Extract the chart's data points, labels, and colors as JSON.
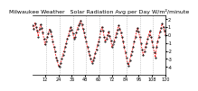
{
  "title": "Milwaukee Weather   Solar Radiation Avg per Day W/m²/minute",
  "x_values": [
    1,
    2,
    3,
    4,
    5,
    6,
    7,
    8,
    9,
    10,
    11,
    12,
    13,
    14,
    15,
    16,
    17,
    18,
    19,
    20,
    21,
    22,
    23,
    24,
    25,
    26,
    27,
    28,
    29,
    30,
    31,
    32,
    33,
    34,
    35,
    36,
    37,
    38,
    39,
    40,
    41,
    42,
    43,
    44,
    45,
    46,
    47,
    48,
    49,
    50,
    51,
    52,
    53,
    54,
    55,
    56,
    57,
    58,
    59,
    60,
    61,
    62,
    63,
    64,
    65,
    66,
    67,
    68,
    69,
    70,
    71,
    72,
    73,
    74,
    75,
    76,
    77,
    78,
    79,
    80,
    81,
    82,
    83,
    84,
    85,
    86,
    87,
    88,
    89,
    90,
    91,
    92,
    93,
    94,
    95,
    96,
    97,
    98,
    99,
    100,
    101,
    102,
    103,
    104,
    105,
    106,
    107,
    108,
    109,
    110,
    111,
    112,
    113,
    114,
    115,
    116,
    117,
    118,
    119,
    120
  ],
  "y_values": [
    1.2,
    0.8,
    1.5,
    1.0,
    0.5,
    -0.2,
    0.8,
    1.3,
    0.9,
    0.3,
    -0.5,
    -1.2,
    -0.8,
    -0.3,
    0.2,
    0.7,
    0.4,
    -0.1,
    -0.8,
    -1.5,
    -2.0,
    -2.8,
    -3.2,
    -3.8,
    -4.0,
    -3.5,
    -3.0,
    -2.5,
    -2.0,
    -1.5,
    -1.0,
    -0.5,
    0.0,
    0.5,
    1.0,
    0.7,
    0.2,
    -0.5,
    -0.2,
    0.3,
    0.8,
    1.2,
    1.5,
    1.8,
    1.3,
    0.8,
    0.3,
    -0.3,
    -0.8,
    -1.5,
    -2.0,
    -2.5,
    -3.0,
    -3.5,
    -3.2,
    -2.8,
    -2.3,
    -1.8,
    -1.3,
    -0.8,
    -0.3,
    0.5,
    1.0,
    0.5,
    -0.2,
    -0.8,
    -0.5,
    0.0,
    0.4,
    -0.1,
    -0.7,
    -1.5,
    -1.2,
    -0.8,
    -0.3,
    0.2,
    0.7,
    1.2,
    0.8,
    0.3,
    -0.2,
    -0.8,
    -1.5,
    -2.2,
    -2.8,
    -3.5,
    -3.8,
    -3.2,
    -2.5,
    -2.0,
    -1.5,
    -0.8,
    -0.3,
    0.5,
    0.9,
    0.4,
    -0.3,
    -1.0,
    -1.8,
    -2.5,
    -2.0,
    -1.5,
    -1.0,
    -0.5,
    0.0,
    0.5,
    -0.2,
    -0.8,
    -1.5,
    -2.2,
    -2.8,
    -1.5,
    -0.8,
    -0.2,
    0.4,
    0.9,
    1.4,
    1.0,
    0.5,
    0.0
  ],
  "line_color": "#ff0000",
  "dot_color": "#000000",
  "background_color": "#ffffff",
  "grid_color": "#aaaaaa",
  "ylim": [
    -5,
    2.5
  ],
  "yticks": [
    -4,
    -3,
    -2,
    -1,
    0,
    1,
    2
  ],
  "ytick_labels": [
    "-4",
    "-3",
    "-2",
    "-1",
    "0",
    "1",
    "2"
  ],
  "vlines_x": [
    13,
    25,
    37,
    49,
    61,
    73,
    85,
    97,
    109
  ],
  "title_fontsize": 4.5,
  "tick_fontsize": 3.5
}
